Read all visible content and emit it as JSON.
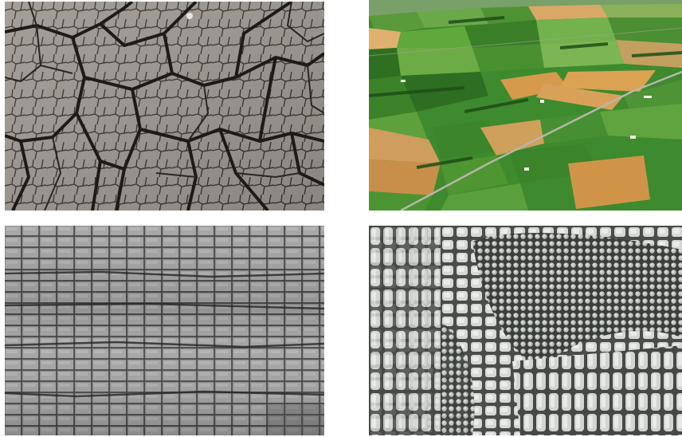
{
  "panels": [
    {
      "subject": "cracked-dry-mud",
      "palette": {
        "base": "#9a948d",
        "crack": "#2a2622"
      }
    },
    {
      "subject": "aerial-farmland",
      "palette": {
        "green": "#3f8a2c",
        "dark_green": "#2c6b22",
        "wheat": "#c9944b",
        "light_green": "#7fb24a"
      }
    },
    {
      "subject": "charred-wood-bark",
      "palette": {
        "base": "#8a8a8a",
        "crack": "#2e2e2e"
      }
    },
    {
      "subject": "crocodile-skin-pattern",
      "palette": {
        "base": "#c9ccc8",
        "crack": "#3c403c"
      }
    }
  ]
}
